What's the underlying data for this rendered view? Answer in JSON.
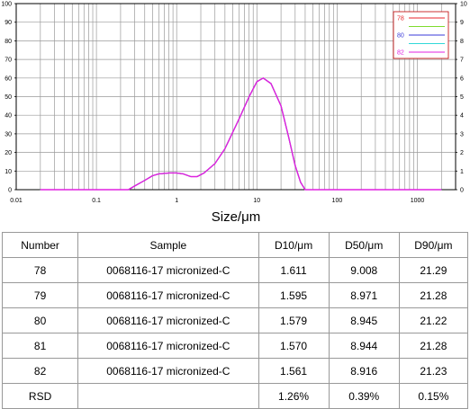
{
  "chart_data": {
    "type": "line",
    "xlabel": "Size/μm",
    "xscale": "log",
    "xlim": [
      0.01,
      3000
    ],
    "x_ticks": [
      "0.01",
      "0.1",
      "1",
      "10",
      "100",
      "1000"
    ],
    "ylim": [
      0,
      100
    ],
    "y_ticks_left": [
      "0",
      "10",
      "20",
      "30",
      "40",
      "50",
      "60",
      "70",
      "80",
      "90",
      "100"
    ],
    "y_ticks_right": [
      "0",
      "1",
      "2",
      "3",
      "4",
      "5",
      "6",
      "7",
      "8",
      "9",
      "10"
    ],
    "grid": true,
    "legend_position": "top-right",
    "series": [
      {
        "name": "78",
        "color": "#e8262b",
        "x": [
          0.02,
          0.25,
          0.3,
          0.4,
          0.5,
          0.6,
          0.8,
          1.0,
          1.2,
          1.5,
          1.8,
          2.2,
          3.0,
          4.0,
          6.0,
          8.0,
          10.0,
          12.0,
          15.0,
          20.0,
          25.0,
          30.0,
          35.0,
          40.0,
          2000
        ],
        "y": [
          0,
          0,
          2,
          5,
          7.5,
          8.5,
          9,
          9,
          8.5,
          7,
          7,
          9,
          14,
          22,
          38,
          50,
          58,
          60,
          57,
          45,
          28,
          13,
          4,
          0,
          0
        ]
      },
      {
        "name": "",
        "color": "#7fdc2e",
        "x": [
          0.02,
          0.25,
          0.3,
          0.4,
          0.5,
          0.6,
          0.8,
          1.0,
          1.2,
          1.5,
          1.8,
          2.2,
          3.0,
          4.0,
          6.0,
          8.0,
          10.0,
          12.0,
          15.0,
          20.0,
          25.0,
          30.0,
          35.0,
          40.0,
          2000
        ],
        "y": [
          0,
          0,
          2,
          5,
          7.5,
          8.5,
          9,
          9,
          8.5,
          7,
          7,
          9,
          14,
          22,
          38,
          50,
          58,
          60,
          57,
          45,
          28,
          13,
          4,
          0,
          0
        ]
      },
      {
        "name": "80",
        "color": "#3a3ad8",
        "x": [
          0.02,
          0.25,
          0.3,
          0.4,
          0.5,
          0.6,
          0.8,
          1.0,
          1.2,
          1.5,
          1.8,
          2.2,
          3.0,
          4.0,
          6.0,
          8.0,
          10.0,
          12.0,
          15.0,
          20.0,
          25.0,
          30.0,
          35.0,
          40.0,
          2000
        ],
        "y": [
          0,
          0,
          2,
          5,
          7.5,
          8.5,
          9,
          9,
          8.5,
          7,
          7,
          9,
          14,
          22,
          38,
          50,
          58,
          60,
          57,
          45,
          28,
          13,
          4,
          0,
          0
        ]
      },
      {
        "name": "",
        "color": "#30d8d8",
        "x": [
          0.02,
          0.25,
          0.3,
          0.4,
          0.5,
          0.6,
          0.8,
          1.0,
          1.2,
          1.5,
          1.8,
          2.2,
          3.0,
          4.0,
          6.0,
          8.0,
          10.0,
          12.0,
          15.0,
          20.0,
          25.0,
          30.0,
          35.0,
          40.0,
          2000
        ],
        "y": [
          0,
          0,
          2,
          5,
          7.5,
          8.5,
          9,
          9,
          8.5,
          7,
          7,
          9,
          14,
          22,
          38,
          50,
          58,
          60,
          57,
          45,
          28,
          13,
          4,
          0,
          0
        ]
      },
      {
        "name": "82",
        "color": "#e020e0",
        "x": [
          0.02,
          0.25,
          0.3,
          0.4,
          0.5,
          0.6,
          0.8,
          1.0,
          1.2,
          1.5,
          1.8,
          2.2,
          3.0,
          4.0,
          6.0,
          8.0,
          10.0,
          12.0,
          15.0,
          20.0,
          25.0,
          30.0,
          35.0,
          40.0,
          2000
        ],
        "y": [
          0,
          0,
          2,
          5,
          7.5,
          8.5,
          9,
          9,
          8.5,
          7,
          7,
          9,
          14,
          22,
          38,
          50,
          58,
          60,
          57,
          45,
          28,
          13,
          4,
          0,
          0
        ]
      }
    ]
  },
  "table": {
    "headers": [
      "Number",
      "Sample",
      "D10/μm",
      "D50/μm",
      "D90/μm"
    ],
    "rows": [
      [
        "78",
        "0068116-17 micronized-C",
        "1.611",
        "9.008",
        "21.29"
      ],
      [
        "79",
        "0068116-17 micronized-C",
        "1.595",
        "8.971",
        "21.28"
      ],
      [
        "80",
        "0068116-17 micronized-C",
        "1.579",
        "8.945",
        "21.22"
      ],
      [
        "81",
        "0068116-17 micronized-C",
        "1.570",
        "8.944",
        "21.28"
      ],
      [
        "82",
        "0068116-17 micronized-C",
        "1.561",
        "8.916",
        "21.23"
      ],
      [
        "RSD",
        "",
        "1.26%",
        "0.39%",
        "0.15%"
      ]
    ]
  }
}
